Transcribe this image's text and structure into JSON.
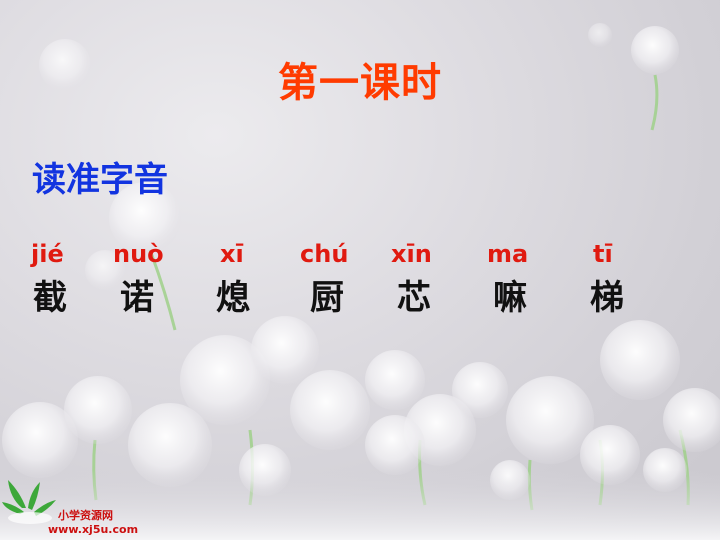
{
  "slide": {
    "title": "第一课时",
    "subtitle": "读准字音"
  },
  "words": [
    {
      "pinyin": "jié",
      "hanzi": "截"
    },
    {
      "pinyin": "nuò",
      "hanzi": "诺"
    },
    {
      "pinyin": "xī",
      "hanzi": "熄"
    },
    {
      "pinyin": "chú",
      "hanzi": "厨"
    },
    {
      "pinyin": "xīn",
      "hanzi": "芯"
    },
    {
      "pinyin": "ma",
      "hanzi": "嘛"
    },
    {
      "pinyin": "tī",
      "hanzi": "梯"
    }
  ],
  "logo": {
    "line1": "小学资源网",
    "line2": "www.xj5u.com"
  },
  "colors": {
    "title": "#ff3b00",
    "subtitle": "#1234e0",
    "pinyin": "#e01a10",
    "hanzi": "#111111"
  }
}
